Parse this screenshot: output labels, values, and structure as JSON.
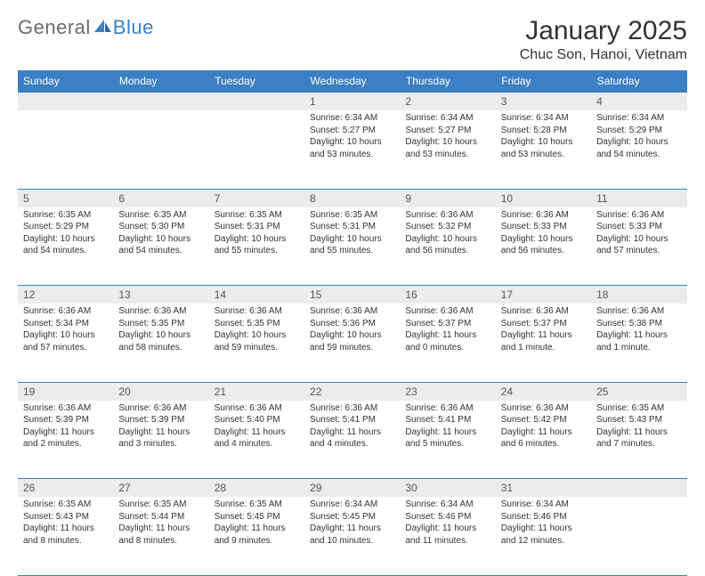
{
  "brand": {
    "part1": "General",
    "part2": "Blue"
  },
  "title": "January 2025",
  "location": "Chuc Son, Hanoi, Vietnam",
  "colors": {
    "accent": "#3b7fc4",
    "dayStripe": "#ececec",
    "text": "#333333",
    "bg": "#ffffff"
  },
  "dayHeaders": [
    "Sunday",
    "Monday",
    "Tuesday",
    "Wednesday",
    "Thursday",
    "Friday",
    "Saturday"
  ],
  "startOffset": 3,
  "days": [
    {
      "n": 1,
      "rise": "6:34 AM",
      "set": "5:27 PM",
      "dl": "10 hours and 53 minutes."
    },
    {
      "n": 2,
      "rise": "6:34 AM",
      "set": "5:27 PM",
      "dl": "10 hours and 53 minutes."
    },
    {
      "n": 3,
      "rise": "6:34 AM",
      "set": "5:28 PM",
      "dl": "10 hours and 53 minutes."
    },
    {
      "n": 4,
      "rise": "6:34 AM",
      "set": "5:29 PM",
      "dl": "10 hours and 54 minutes."
    },
    {
      "n": 5,
      "rise": "6:35 AM",
      "set": "5:29 PM",
      "dl": "10 hours and 54 minutes."
    },
    {
      "n": 6,
      "rise": "6:35 AM",
      "set": "5:30 PM",
      "dl": "10 hours and 54 minutes."
    },
    {
      "n": 7,
      "rise": "6:35 AM",
      "set": "5:31 PM",
      "dl": "10 hours and 55 minutes."
    },
    {
      "n": 8,
      "rise": "6:35 AM",
      "set": "5:31 PM",
      "dl": "10 hours and 55 minutes."
    },
    {
      "n": 9,
      "rise": "6:36 AM",
      "set": "5:32 PM",
      "dl": "10 hours and 56 minutes."
    },
    {
      "n": 10,
      "rise": "6:36 AM",
      "set": "5:33 PM",
      "dl": "10 hours and 56 minutes."
    },
    {
      "n": 11,
      "rise": "6:36 AM",
      "set": "5:33 PM",
      "dl": "10 hours and 57 minutes."
    },
    {
      "n": 12,
      "rise": "6:36 AM",
      "set": "5:34 PM",
      "dl": "10 hours and 57 minutes."
    },
    {
      "n": 13,
      "rise": "6:36 AM",
      "set": "5:35 PM",
      "dl": "10 hours and 58 minutes."
    },
    {
      "n": 14,
      "rise": "6:36 AM",
      "set": "5:35 PM",
      "dl": "10 hours and 59 minutes."
    },
    {
      "n": 15,
      "rise": "6:36 AM",
      "set": "5:36 PM",
      "dl": "10 hours and 59 minutes."
    },
    {
      "n": 16,
      "rise": "6:36 AM",
      "set": "5:37 PM",
      "dl": "11 hours and 0 minutes."
    },
    {
      "n": 17,
      "rise": "6:36 AM",
      "set": "5:37 PM",
      "dl": "11 hours and 1 minute."
    },
    {
      "n": 18,
      "rise": "6:36 AM",
      "set": "5:38 PM",
      "dl": "11 hours and 1 minute."
    },
    {
      "n": 19,
      "rise": "6:36 AM",
      "set": "5:39 PM",
      "dl": "11 hours and 2 minutes."
    },
    {
      "n": 20,
      "rise": "6:36 AM",
      "set": "5:39 PM",
      "dl": "11 hours and 3 minutes."
    },
    {
      "n": 21,
      "rise": "6:36 AM",
      "set": "5:40 PM",
      "dl": "11 hours and 4 minutes."
    },
    {
      "n": 22,
      "rise": "6:36 AM",
      "set": "5:41 PM",
      "dl": "11 hours and 4 minutes."
    },
    {
      "n": 23,
      "rise": "6:36 AM",
      "set": "5:41 PM",
      "dl": "11 hours and 5 minutes."
    },
    {
      "n": 24,
      "rise": "6:36 AM",
      "set": "5:42 PM",
      "dl": "11 hours and 6 minutes."
    },
    {
      "n": 25,
      "rise": "6:35 AM",
      "set": "5:43 PM",
      "dl": "11 hours and 7 minutes."
    },
    {
      "n": 26,
      "rise": "6:35 AM",
      "set": "5:43 PM",
      "dl": "11 hours and 8 minutes."
    },
    {
      "n": 27,
      "rise": "6:35 AM",
      "set": "5:44 PM",
      "dl": "11 hours and 8 minutes."
    },
    {
      "n": 28,
      "rise": "6:35 AM",
      "set": "5:45 PM",
      "dl": "11 hours and 9 minutes."
    },
    {
      "n": 29,
      "rise": "6:34 AM",
      "set": "5:45 PM",
      "dl": "11 hours and 10 minutes."
    },
    {
      "n": 30,
      "rise": "6:34 AM",
      "set": "5:46 PM",
      "dl": "11 hours and 11 minutes."
    },
    {
      "n": 31,
      "rise": "6:34 AM",
      "set": "5:46 PM",
      "dl": "11 hours and 12 minutes."
    }
  ],
  "labels": {
    "sunrise": "Sunrise:",
    "sunset": "Sunset:",
    "daylight": "Daylight:"
  }
}
